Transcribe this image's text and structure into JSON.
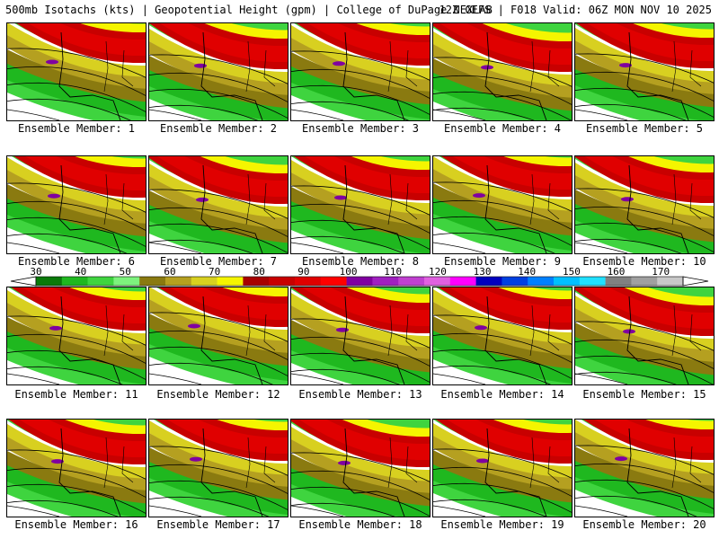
{
  "header": {
    "left": "500mb Isotachs (kts) | Geopotential Height (gpm) | College of DuPage NEXLAB",
    "right": "12Z GEFS | F018 Valid: 06Z MON NOV 10 2025"
  },
  "members": [
    {
      "label": "Ensemble Member: 1"
    },
    {
      "label": "Ensemble Member: 2"
    },
    {
      "label": "Ensemble Member: 3"
    },
    {
      "label": "Ensemble Member: 4"
    },
    {
      "label": "Ensemble Member: 5"
    },
    {
      "label": "Ensemble Member: 6"
    },
    {
      "label": "Ensemble Member: 7"
    },
    {
      "label": "Ensemble Member: 8"
    },
    {
      "label": "Ensemble Member: 9"
    },
    {
      "label": "Ensemble Member: 10"
    },
    {
      "label": "Ensemble Member: 11"
    },
    {
      "label": "Ensemble Member: 12"
    },
    {
      "label": "Ensemble Member: 13"
    },
    {
      "label": "Ensemble Member: 14"
    },
    {
      "label": "Ensemble Member: 15"
    },
    {
      "label": "Ensemble Member: 16"
    },
    {
      "label": "Ensemble Member: 17"
    },
    {
      "label": "Ensemble Member: 18"
    },
    {
      "label": "Ensemble Member: 19"
    },
    {
      "label": "Ensemble Member: 20"
    }
  ],
  "colorbar": {
    "unit": "kts",
    "tick_labels": [
      "30",
      "40",
      "50",
      "60",
      "70",
      "80",
      "90",
      "100",
      "110",
      "120",
      "130",
      "140",
      "150",
      "160",
      "170"
    ],
    "colors": [
      "#0a7a0a",
      "#1fb81f",
      "#3fd43f",
      "#7df27d",
      "#8a7a10",
      "#b5a020",
      "#d8d020",
      "#f5f500",
      "#a80000",
      "#c80000",
      "#e00000",
      "#ff0000",
      "#8000a0",
      "#a020c0",
      "#c040d0",
      "#e060e0",
      "#ff00ff",
      "#0000c0",
      "#0040e0",
      "#0080ff",
      "#00c0ff",
      "#20e0ff",
      "#808080",
      "#a0a0a0",
      "#c8c8c8"
    ]
  }
}
